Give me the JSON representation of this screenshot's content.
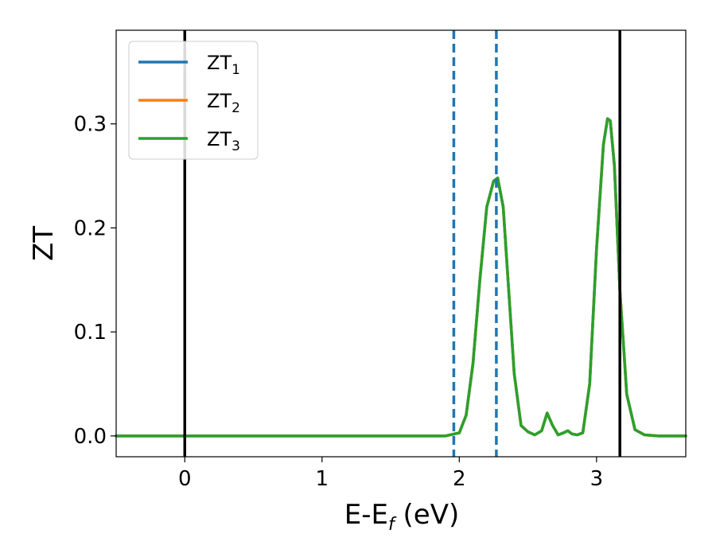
{
  "chart_data": {
    "type": "line",
    "xlabel": "E-E",
    "xlabel_sub": "f",
    "xlabel_unit": " (eV)",
    "ylabel": "ZT",
    "xlim": [
      -0.5,
      3.65
    ],
    "ylim": [
      -0.02,
      0.39
    ],
    "xticks": [
      0,
      1,
      2,
      3
    ],
    "xtick_labels": [
      "0",
      "1",
      "2",
      "3"
    ],
    "yticks": [
      0.0,
      0.1,
      0.2,
      0.3
    ],
    "ytick_labels": [
      "0.0",
      "0.1",
      "0.2",
      "0.3"
    ],
    "grid": false,
    "legend_position": "top-left",
    "vlines_solid": [
      0,
      3.17
    ],
    "vlines_dashed": [
      1.96,
      2.27
    ],
    "vline_solid_color": "#000000",
    "vline_dashed_color": "#1f77b4",
    "x": [
      -0.5,
      0.0,
      0.5,
      1.0,
      1.5,
      1.9,
      2.0,
      2.05,
      2.1,
      2.15,
      2.2,
      2.25,
      2.28,
      2.32,
      2.35,
      2.4,
      2.45,
      2.5,
      2.55,
      2.6,
      2.64,
      2.68,
      2.72,
      2.76,
      2.79,
      2.82,
      2.86,
      2.9,
      2.95,
      3.0,
      3.05,
      3.08,
      3.1,
      3.13,
      3.17,
      3.22,
      3.28,
      3.35,
      3.45,
      3.65
    ],
    "series": [
      {
        "name": "ZT",
        "sub": "1",
        "color": "#1f77b4",
        "values": [
          0,
          0,
          0,
          0,
          0,
          0,
          0.003,
          0.02,
          0.07,
          0.15,
          0.22,
          0.245,
          0.248,
          0.22,
          0.16,
          0.06,
          0.01,
          0.004,
          0.001,
          0.005,
          0.022,
          0.01,
          0.001,
          0.003,
          0.005,
          0.002,
          0.001,
          0.003,
          0.05,
          0.18,
          0.28,
          0.305,
          0.303,
          0.26,
          0.14,
          0.04,
          0.006,
          0.001,
          0,
          0
        ]
      },
      {
        "name": "ZT",
        "sub": "2",
        "color": "#ff7f0e",
        "values": [
          0,
          0,
          0,
          0,
          0,
          0,
          0.003,
          0.02,
          0.07,
          0.15,
          0.22,
          0.245,
          0.248,
          0.22,
          0.16,
          0.06,
          0.01,
          0.004,
          0.001,
          0.005,
          0.022,
          0.01,
          0.001,
          0.003,
          0.005,
          0.002,
          0.001,
          0.003,
          0.05,
          0.18,
          0.28,
          0.305,
          0.303,
          0.26,
          0.14,
          0.04,
          0.006,
          0.001,
          0,
          0
        ]
      },
      {
        "name": "ZT",
        "sub": "3",
        "color": "#2ca02c",
        "values": [
          0,
          0,
          0,
          0,
          0,
          0,
          0.003,
          0.02,
          0.07,
          0.15,
          0.22,
          0.245,
          0.248,
          0.22,
          0.16,
          0.06,
          0.01,
          0.004,
          0.001,
          0.005,
          0.022,
          0.01,
          0.001,
          0.003,
          0.005,
          0.002,
          0.001,
          0.003,
          0.05,
          0.18,
          0.28,
          0.305,
          0.303,
          0.26,
          0.14,
          0.04,
          0.006,
          0.001,
          0,
          0
        ]
      }
    ]
  }
}
